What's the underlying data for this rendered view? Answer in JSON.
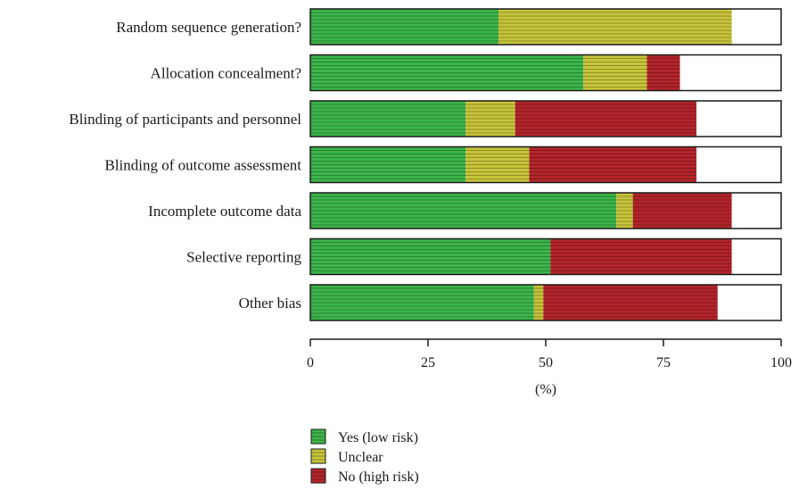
{
  "chart_data": {
    "type": "bar",
    "orientation": "horizontal",
    "stacked": true,
    "xlabel": "(%)",
    "xlim": [
      0,
      100
    ],
    "xticks": [
      0,
      25,
      50,
      75,
      100
    ],
    "categories": [
      "Random sequence generation?",
      "Allocation concealment?",
      "Blinding of participants and personnel",
      "Blinding of outcome assessment",
      "Incomplete outcome data",
      "Selective reporting",
      "Other bias"
    ],
    "series": [
      {
        "name": "Yes (low risk)",
        "color": "#3cb54a",
        "values": [
          40,
          58,
          33,
          33,
          65,
          51,
          47.5
        ]
      },
      {
        "name": "Unclear",
        "color": "#c8c43a",
        "values": [
          49.5,
          13.5,
          10.5,
          13.5,
          3.5,
          0,
          2
        ]
      },
      {
        "name": "No (high risk)",
        "color": "#b3242a",
        "values": [
          0,
          7,
          38.5,
          35.5,
          21,
          38.5,
          37
        ]
      }
    ],
    "legend_position": "bottom-left",
    "grid": false
  }
}
